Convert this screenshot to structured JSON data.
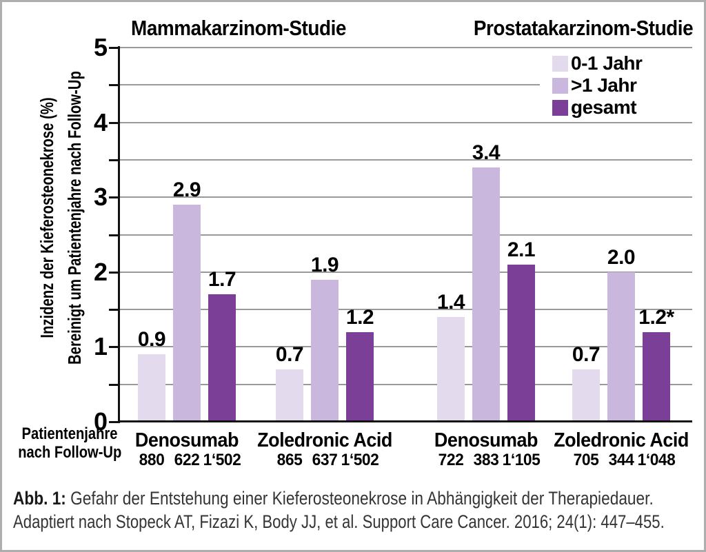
{
  "figure": {
    "caption_label": "Abb. 1:",
    "caption_line1_rest": " Gefahr der Entstehung einer Kieferosteonekrose in Abhängigkeit der Therapiedauer.",
    "caption_line2": "Adaptiert nach Stopeck AT, Fizazi K, Body JJ, et al. Support Care Cancer. 2016; 24(1): 447–455."
  },
  "chart_data": {
    "type": "bar",
    "titles": [
      "Mammakarzinom-Studie",
      "Prostatakarzinom-Studie"
    ],
    "ylabel_line1": "Inzidenz der Kieferosteonekrose (%)",
    "ylabel_line2": "Bereinigt um Patientenjahre nach Follow-Up",
    "ylim": [
      0,
      5
    ],
    "ytick_labels": [
      "0",
      "1",
      "2",
      "3",
      "4",
      "5"
    ],
    "gridline_step": 0.5,
    "grid": "on",
    "legend_position": "top-right",
    "legend": [
      {
        "label": "0-1 Jahr",
        "color": "#e3daee"
      },
      {
        "label": ">1 Jahr",
        "color": "#cab7dd"
      },
      {
        "label": "gesamt",
        "color": "#7c3f98"
      }
    ],
    "series_names": [
      "0-1 Jahr",
      ">1 Jahr",
      "gesamt"
    ],
    "xaxis_note_line1": "Patientenjahre",
    "xaxis_note_line2": "nach Follow-Up",
    "groups": [
      {
        "study": "Mammakarzinom-Studie",
        "label": "Denosumab",
        "values": [
          0.9,
          2.9,
          1.7
        ],
        "value_labels": [
          "0.9",
          "2.9",
          "1.7"
        ],
        "patient_years": [
          "880",
          "622",
          "1‘502"
        ]
      },
      {
        "study": "Mammakarzinom-Studie",
        "label": "Zoledronic Acid",
        "values": [
          0.7,
          1.9,
          1.2
        ],
        "value_labels": [
          "0.7",
          "1.9",
          "1.2"
        ],
        "patient_years": [
          "865",
          "637",
          "1‘502"
        ]
      },
      {
        "study": "Prostatakarzinom-Studie",
        "label": "Denosumab",
        "values": [
          1.4,
          3.4,
          2.1
        ],
        "value_labels": [
          "1.4",
          "3.4",
          "2.1"
        ],
        "patient_years": [
          "722",
          "383",
          "1‘105"
        ]
      },
      {
        "study": "Prostatakarzinom-Studie",
        "label": "Zoledronic Acid",
        "values": [
          0.7,
          2.0,
          1.2
        ],
        "value_labels": [
          "0.7",
          "2.0",
          "1.2*"
        ],
        "patient_years": [
          "705",
          "344",
          "1‘048"
        ]
      }
    ]
  }
}
